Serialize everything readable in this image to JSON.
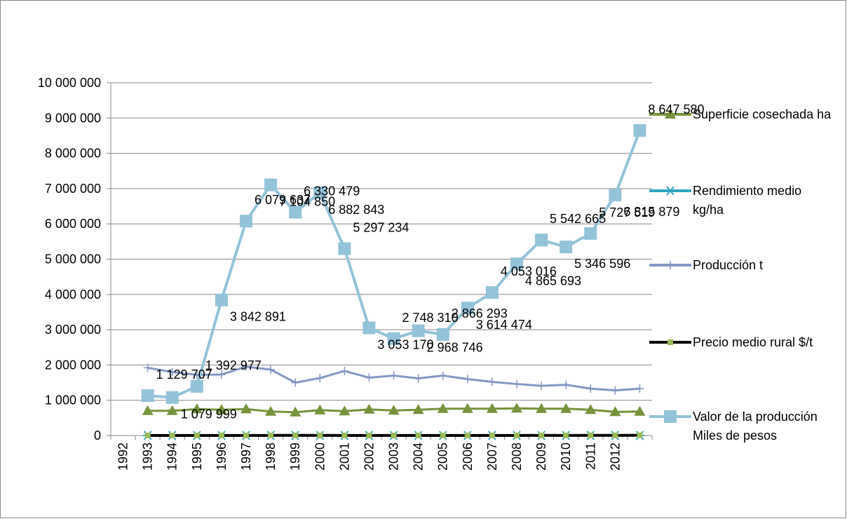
{
  "chart_data": {
    "type": "line",
    "categories": [
      "1992",
      "1993",
      "1994",
      "1995",
      "1996",
      "1997",
      "1998",
      "1999",
      "2000",
      "2001",
      "2002",
      "2003",
      "2004",
      "2005",
      "2006",
      "2007",
      "2008",
      "2009",
      "2010",
      "2011",
      "2012",
      null
    ],
    "ylim": [
      0,
      10000000
    ],
    "yticks": [
      0,
      {
        "value": 1000000,
        "label": "1 000 000"
      },
      {
        "value": 2000000,
        "label": "2 000 000"
      },
      {
        "value": 3000000,
        "label": "3 000 000"
      },
      {
        "value": 4000000,
        "label": "4 000 000"
      },
      {
        "value": 5000000,
        "label": "5 000 000"
      },
      {
        "value": 6000000,
        "label": "6 000 000"
      },
      {
        "value": 7000000,
        "label": "7 000 000"
      },
      {
        "value": 8000000,
        "label": "8 000 000"
      },
      {
        "value": 9000000,
        "label": "9 000 000"
      },
      {
        "value": 10000000,
        "label": "10 000 000"
      }
    ],
    "grid": true,
    "series": [
      {
        "name": "Superficie cosechada ha",
        "color": "#77933c",
        "marker": "triangle",
        "values": [
          null,
          700000,
          700000,
          750000,
          730000,
          750000,
          680000,
          660000,
          720000,
          690000,
          740000,
          710000,
          730000,
          760000,
          760000,
          760000,
          770000,
          760000,
          760000,
          730000,
          670000,
          680000
        ]
      },
      {
        "name": "Rendimiento medio kg/ha",
        "color": "#31a5c0",
        "marker": "asterisk",
        "values": [
          null,
          2700,
          2600,
          2300,
          2400,
          2600,
          2800,
          2300,
          2300,
          2700,
          2200,
          2400,
          2200,
          2200,
          2100,
          2000,
          1900,
          1900,
          1900,
          1800,
          1900,
          2000
        ]
      },
      {
        "name": "Producción t",
        "color": "#8497c4",
        "marker": "plus",
        "values": [
          null,
          1920000,
          1800000,
          1720000,
          1730000,
          1950000,
          1870000,
          1500000,
          1630000,
          1830000,
          1640000,
          1700000,
          1620000,
          1700000,
          1600000,
          1520000,
          1460000,
          1410000,
          1440000,
          1330000,
          1280000,
          1330000
        ]
      },
      {
        "name": "Precio  medio rural $/t",
        "color": "#000000",
        "marker": "square-green",
        "values": [
          null,
          1500,
          1600,
          1800,
          2200,
          3000,
          3800,
          4200,
          4200,
          2900,
          1900,
          1600,
          1800,
          1700,
          2300,
          2700,
          3300,
          3900,
          3700,
          4300,
          5300,
          6500
        ]
      },
      {
        "name": "Valor de la producción Miles de pesos",
        "color": "#93c3d8",
        "marker": "square",
        "values": [
          null,
          1129707,
          1079999,
          1392977,
          3842891,
          6079637,
          7104850,
          6330479,
          6882843,
          5297234,
          3053170,
          2748310,
          2968746,
          2866293,
          3614474,
          4053016,
          4865693,
          5542665,
          5346596,
          5727519,
          6815879,
          8647580
        ],
        "value_labels": [
          null,
          "1 129 707",
          "1 079 999",
          "1 392 977",
          "3 842 891",
          "6 079 637",
          "7 104 850",
          "6 330 479",
          "6 882 843",
          "5 297 234",
          "3 053 170",
          "2 748 310",
          "2 968 746",
          "2 866 293",
          "3 614 474",
          "4 053 016",
          "4 865 693",
          "5 542 665",
          "5 346 596",
          "5 727 519",
          "6 815 879",
          "8 647 580"
        ]
      }
    ]
  }
}
